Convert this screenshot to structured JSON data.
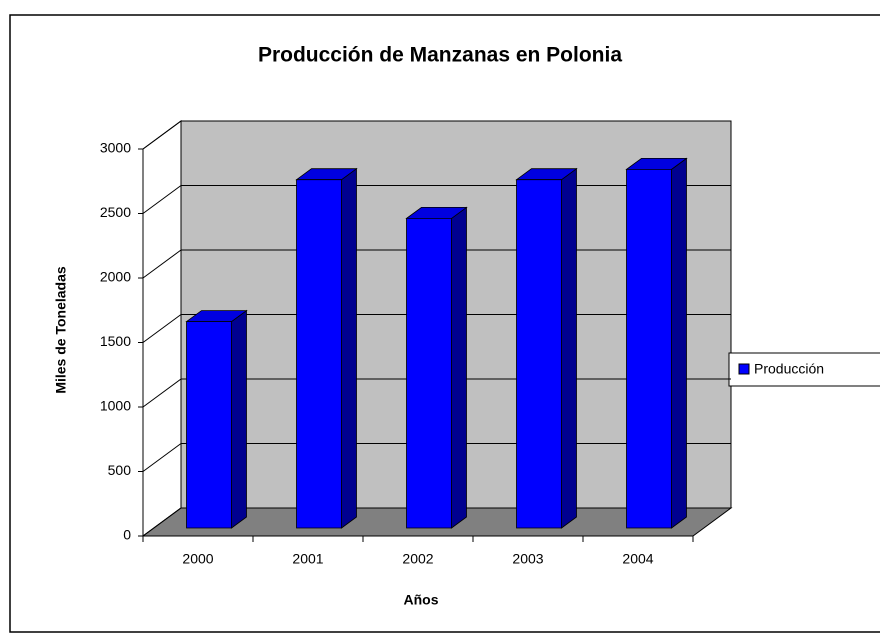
{
  "chart_data": {
    "type": "bar3d",
    "title": "Producción de Manzanas en Polonia",
    "x_label": "Años",
    "y_label": "Miles de Toneladas",
    "categories": [
      "2000",
      "2001",
      "2002",
      "2003",
      "2004"
    ],
    "series": [
      {
        "name": "Producción",
        "color": "#0000ff",
        "values": [
          1600,
          2700,
          2400,
          2700,
          2780
        ]
      }
    ],
    "ylim": [
      0,
      3000
    ],
    "yticks": [
      0,
      500,
      1000,
      1500,
      2000,
      2500,
      3000
    ],
    "grid": true,
    "legend": "right"
  }
}
